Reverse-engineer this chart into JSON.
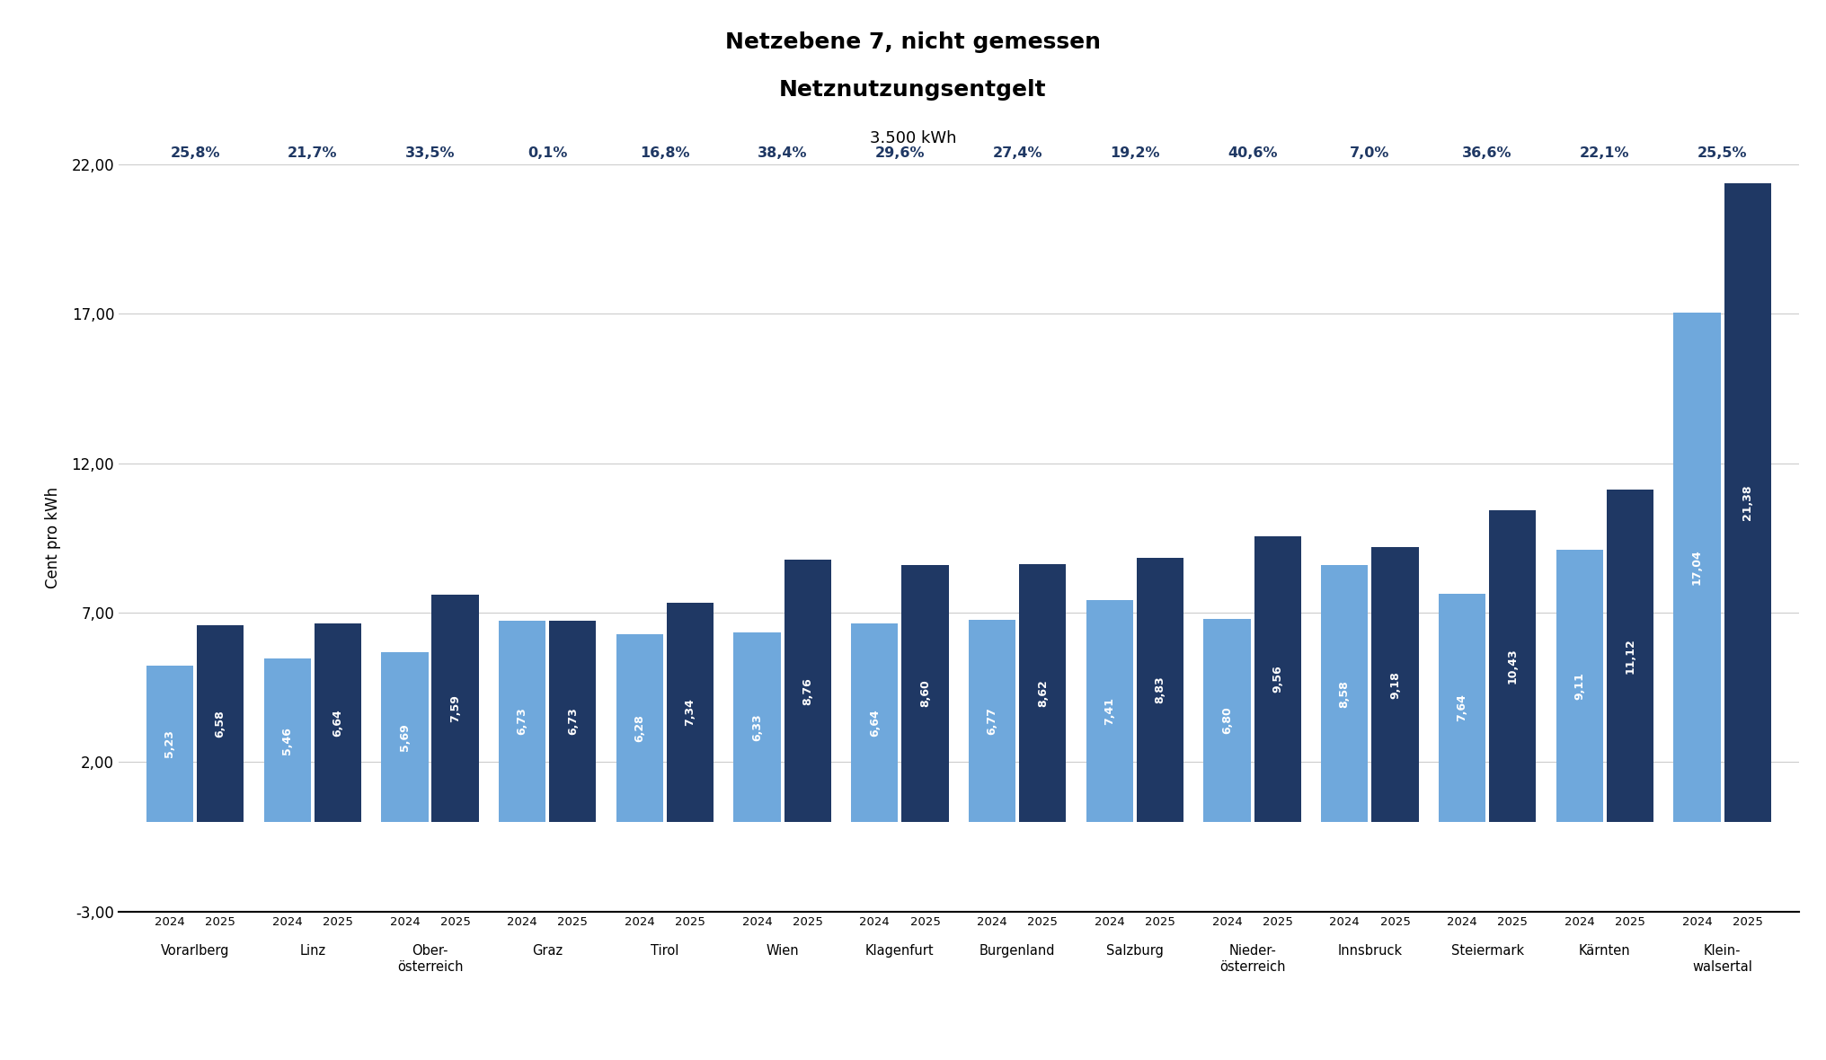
{
  "title_line1": "Netzebene 7, nicht gemessen",
  "title_line2": "Netznutzungsentgelt",
  "title_line3": "3.500 kWh",
  "ylabel": "Cent pro kWh",
  "ylim": [
    -3.0,
    22.0
  ],
  "yticks": [
    -3.0,
    2.0,
    7.0,
    12.0,
    17.0,
    22.0
  ],
  "color_2024": "#6FA8DC",
  "color_2025": "#1F3864",
  "pct_color": "#1F3864",
  "categories": [
    "Vorarlberg",
    "Linz",
    "Ober-\nösterreich",
    "Graz",
    "Tirol",
    "Wien",
    "Klagenfurt",
    "Burgenland",
    "Salzburg",
    "Nieder-\nösterreich",
    "Innsbruck",
    "Steiermark",
    "Kärnten",
    "Klein-\nwalsertal"
  ],
  "values_2024": [
    5.23,
    5.46,
    5.69,
    6.73,
    6.28,
    6.33,
    6.64,
    6.77,
    7.41,
    6.8,
    8.58,
    7.64,
    9.11,
    17.04
  ],
  "values_2025": [
    6.58,
    6.64,
    7.59,
    6.73,
    7.34,
    8.76,
    8.6,
    8.62,
    8.83,
    9.56,
    9.18,
    10.43,
    11.12,
    21.38
  ],
  "pct_labels": [
    "25,8%",
    "21,7%",
    "33,5%",
    "0,1%",
    "16,8%",
    "38,4%",
    "29,6%",
    "27,4%",
    "19,2%",
    "40,6%",
    "7,0%",
    "36,6%",
    "22,1%",
    "25,5%"
  ],
  "background_color": "#FFFFFF",
  "grid_color": "#CCCCCC"
}
